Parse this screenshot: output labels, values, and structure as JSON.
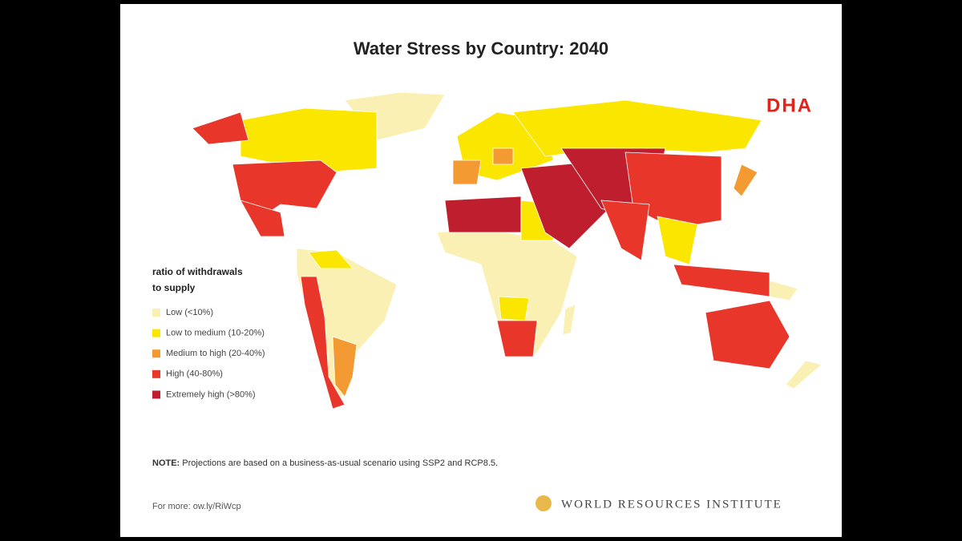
{
  "header": {
    "title": "Water Stress by Country: 2040",
    "logo": "DHA"
  },
  "legend": {
    "title_lines": [
      "ratio of withdrawals",
      "to supply"
    ],
    "items": [
      {
        "label": "Low (<10%)",
        "color": "#fbf0b4"
      },
      {
        "label": "Low to medium (10-20%)",
        "color": "#fbe600"
      },
      {
        "label": "Medium to high (20-40%)",
        "color": "#f39a32"
      },
      {
        "label": "High (40-80%)",
        "color": "#e8362a"
      },
      {
        "label": "Extremely high (>80%)",
        "color": "#bf1e2e"
      }
    ]
  },
  "note": {
    "label": "NOTE:",
    "text": "Projections are based on a business-as-usual scenario using SSP2 and RCP8.5."
  },
  "footer": {
    "link": "For more: ow.ly/RiWcp",
    "organization": "WORLD RESOURCES INSTITUTE"
  }
}
